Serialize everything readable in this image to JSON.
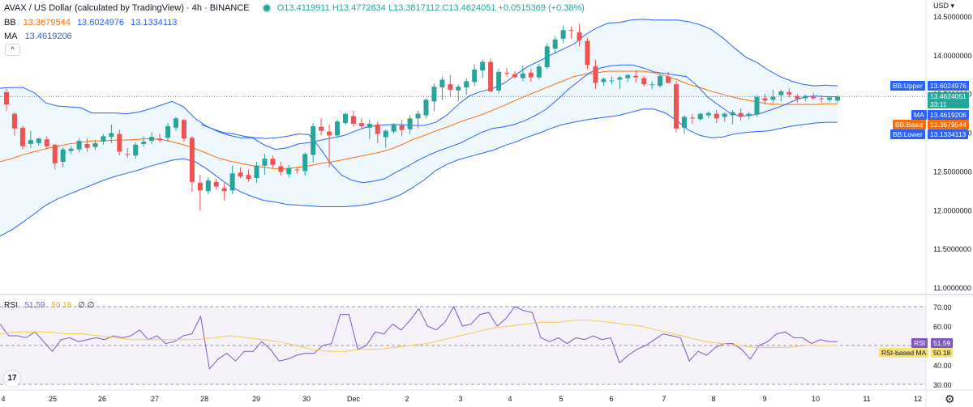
{
  "header": {
    "title": "AVAX / US Dollar (calculated by TradingView) · 4h · BINANCE",
    "ohlc": "O13.4119911 H13.4772634 L13.3817112 C13.4624051 +0.0515369 (+0.38%)",
    "bb_label": "BB",
    "bb_values": [
      "13.3679544",
      "13.6024976",
      "13.1334113"
    ],
    "ma_label": "MA",
    "ma_value": "13.4619206",
    "collapse_symbol": "^"
  },
  "price_axis": {
    "currency": "USD",
    "ticks": [
      "14.5000000",
      "14.0000000",
      "13.5000000",
      "13.0000000",
      "12.5000000",
      "12.0000000",
      "11.5000000",
      "11.0000000"
    ],
    "tags": {
      "bb_upper_label": "BB:Upper",
      "bb_upper_value": "13.6024976",
      "last_price": "13.4624051",
      "countdown": "33:11",
      "ma_label": "MA",
      "ma_value": "13.4619206",
      "bb_basis_label": "BB:Basis",
      "bb_basis_value": "13.3679544",
      "bb_lower_label": "BB:Lower",
      "bb_lower_value": "13.1334113"
    }
  },
  "rsi": {
    "legend_label": "RSI",
    "legend_value": "51.59",
    "legend_ma": "50.18",
    "legend_extra": "∅ ∅",
    "ticks": [
      "70.00",
      "60.00",
      "40.00",
      "30.00"
    ],
    "rsi_tag_label": "RSI",
    "rsi_tag_value": "51.59",
    "ma_tag_label": "RSI-based MA",
    "ma_tag_value": "50.18"
  },
  "time_axis": [
    "4",
    "25",
    "26",
    "27",
    "28",
    "29",
    "30",
    "Dec",
    "2",
    "3",
    "4",
    "5",
    "6",
    "7",
    "8",
    "9",
    "10",
    "11",
    "12"
  ],
  "colors": {
    "up": "#26a69a",
    "down": "#ef5350",
    "bb_band": "#2962ff",
    "bb_basis": "#ff6d00",
    "rsi_line": "#7e57c2",
    "rsi_ma": "#f7c948",
    "last_price": "#26a69a"
  },
  "chart_data": {
    "type": "candlestick",
    "title": "AVAX / US Dollar (calculated by TradingView) · 4h · BINANCE",
    "candles_ohlc": [
      [
        13.52,
        13.56,
        13.28,
        13.36
      ],
      [
        13.24,
        13.26,
        12.96,
        13.05
      ],
      [
        13.06,
        13.09,
        12.78,
        12.82
      ],
      [
        12.85,
        13.02,
        12.8,
        12.9
      ],
      [
        12.86,
        12.93,
        12.83,
        12.92
      ],
      [
        12.91,
        12.95,
        12.78,
        12.82
      ],
      [
        12.84,
        12.85,
        12.52,
        12.6
      ],
      [
        12.62,
        12.81,
        12.55,
        12.78
      ],
      [
        12.76,
        12.82,
        12.72,
        12.79
      ],
      [
        12.78,
        12.92,
        12.74,
        12.89
      ],
      [
        12.85,
        12.92,
        12.75,
        12.8
      ],
      [
        12.81,
        12.9,
        12.77,
        12.86
      ],
      [
        12.88,
        12.98,
        12.84,
        12.95
      ],
      [
        12.94,
        13.1,
        12.86,
        12.99
      ],
      [
        12.98,
        13.04,
        12.7,
        12.75
      ],
      [
        12.72,
        12.8,
        12.67,
        12.71
      ],
      [
        12.7,
        12.87,
        12.66,
        12.84
      ],
      [
        12.85,
        12.95,
        12.82,
        12.88
      ],
      [
        12.89,
        13.0,
        12.85,
        12.94
      ],
      [
        12.92,
        12.98,
        12.87,
        12.9
      ],
      [
        12.93,
        13.12,
        12.88,
        13.08
      ],
      [
        13.06,
        13.2,
        13.02,
        13.18
      ],
      [
        13.16,
        13.17,
        12.88,
        12.92
      ],
      [
        12.93,
        12.95,
        12.23,
        12.36
      ],
      [
        12.35,
        12.45,
        11.99,
        12.25
      ],
      [
        12.24,
        12.42,
        12.2,
        12.38
      ],
      [
        12.36,
        12.4,
        12.26,
        12.3
      ],
      [
        12.28,
        12.35,
        12.12,
        12.24
      ],
      [
        12.25,
        12.57,
        12.2,
        12.47
      ],
      [
        12.48,
        12.55,
        12.41,
        12.43
      ],
      [
        12.45,
        12.52,
        12.36,
        12.4
      ],
      [
        12.41,
        12.62,
        12.35,
        12.57
      ],
      [
        12.57,
        12.72,
        12.45,
        12.66
      ],
      [
        12.66,
        12.7,
        12.54,
        12.58
      ],
      [
        12.56,
        12.62,
        12.44,
        12.49
      ],
      [
        12.46,
        12.58,
        12.42,
        12.54
      ],
      [
        12.52,
        12.55,
        12.47,
        12.51
      ],
      [
        12.5,
        12.74,
        12.44,
        12.72
      ],
      [
        12.71,
        13.12,
        12.61,
        13.08
      ],
      [
        13.07,
        13.18,
        12.96,
        13.02
      ],
      [
        13.01,
        13.1,
        12.55,
        12.96
      ],
      [
        12.96,
        13.16,
        12.93,
        13.14
      ],
      [
        13.12,
        13.25,
        13.1,
        13.24
      ],
      [
        13.21,
        13.28,
        13.07,
        13.11
      ],
      [
        13.12,
        13.18,
        13.05,
        13.08
      ],
      [
        13.06,
        13.17,
        12.91,
        13.11
      ],
      [
        13.1,
        13.14,
        12.86,
        12.98
      ],
      [
        12.94,
        13.04,
        12.8,
        13.02
      ],
      [
        13.01,
        13.12,
        12.98,
        13.1
      ],
      [
        13.09,
        13.16,
        12.95,
        13.03
      ],
      [
        13.04,
        13.22,
        12.98,
        13.18
      ],
      [
        13.18,
        13.28,
        13.05,
        13.24
      ],
      [
        13.22,
        13.44,
        13.18,
        13.42
      ],
      [
        13.4,
        13.63,
        13.27,
        13.59
      ],
      [
        13.58,
        13.72,
        13.42,
        13.68
      ],
      [
        13.62,
        13.74,
        13.47,
        13.55
      ],
      [
        13.54,
        13.62,
        13.4,
        13.59
      ],
      [
        13.58,
        13.7,
        13.48,
        13.66
      ],
      [
        13.65,
        13.88,
        13.6,
        13.81
      ],
      [
        13.8,
        13.94,
        13.7,
        13.91
      ],
      [
        13.91,
        13.95,
        13.52,
        13.53
      ],
      [
        13.54,
        13.82,
        13.5,
        13.78
      ],
      [
        13.77,
        13.83,
        13.72,
        13.76
      ],
      [
        13.75,
        13.79,
        13.7,
        13.71
      ],
      [
        13.7,
        13.86,
        13.66,
        13.76
      ],
      [
        13.77,
        13.82,
        13.65,
        13.71
      ],
      [
        13.71,
        13.88,
        13.68,
        13.85
      ],
      [
        13.84,
        14.15,
        13.82,
        14.11
      ],
      [
        14.08,
        14.24,
        14.02,
        14.2
      ],
      [
        14.21,
        14.38,
        14.15,
        14.32
      ],
      [
        14.32,
        14.37,
        14.21,
        14.31
      ],
      [
        14.29,
        14.4,
        14.11,
        14.19
      ],
      [
        14.18,
        14.22,
        13.82,
        13.87
      ],
      [
        13.85,
        13.94,
        13.56,
        13.64
      ],
      [
        13.65,
        13.71,
        13.6,
        13.69
      ],
      [
        13.67,
        13.72,
        13.62,
        13.67
      ],
      [
        13.68,
        13.73,
        13.56,
        13.71
      ],
      [
        13.7,
        13.75,
        13.65,
        13.74
      ],
      [
        13.73,
        13.8,
        13.64,
        13.71
      ],
      [
        13.7,
        13.73,
        13.59,
        13.62
      ],
      [
        13.61,
        13.66,
        13.56,
        13.62
      ],
      [
        13.6,
        13.75,
        13.58,
        13.73
      ],
      [
        13.72,
        13.78,
        13.63,
        13.64
      ],
      [
        13.62,
        13.66,
        13.0,
        13.05
      ],
      [
        13.06,
        13.22,
        12.98,
        13.2
      ],
      [
        13.19,
        13.24,
        13.11,
        13.18
      ],
      [
        13.17,
        13.25,
        13.15,
        13.24
      ],
      [
        13.22,
        13.27,
        13.18,
        13.25
      ],
      [
        13.24,
        13.29,
        13.12,
        13.18
      ],
      [
        13.2,
        13.26,
        13.14,
        13.24
      ],
      [
        13.22,
        13.29,
        13.1,
        13.26
      ],
      [
        13.25,
        13.31,
        13.15,
        13.2
      ],
      [
        13.21,
        13.26,
        13.17,
        13.24
      ],
      [
        13.23,
        13.48,
        13.2,
        13.46
      ],
      [
        13.44,
        13.5,
        13.36,
        13.41
      ],
      [
        13.42,
        13.55,
        13.38,
        13.46
      ],
      [
        13.48,
        13.55,
        13.4,
        13.53
      ],
      [
        13.52,
        13.57,
        13.45,
        13.49
      ],
      [
        13.47,
        13.5,
        13.38,
        13.43
      ],
      [
        13.44,
        13.49,
        13.4,
        13.47
      ],
      [
        13.46,
        13.51,
        13.42,
        13.44
      ],
      [
        13.44,
        13.48,
        13.38,
        13.43
      ],
      [
        13.42,
        13.47,
        13.39,
        13.45
      ],
      [
        13.41,
        13.48,
        13.38,
        13.46
      ]
    ],
    "bb_upper": [
      13.57,
      13.58,
      13.58,
      13.51,
      13.38,
      13.34,
      13.33,
      13.32,
      13.25,
      13.25,
      13.25,
      13.24,
      13.26,
      13.3,
      13.35,
      13.4,
      13.33,
      13.18,
      13.08,
      13.01,
      12.96,
      12.93,
      12.93,
      12.84,
      12.78,
      12.8,
      12.85,
      12.87,
      12.9,
      12.93,
      12.96,
      13.02,
      13.07,
      13.09,
      13.1,
      13.1,
      13.09,
      13.09,
      13.13,
      13.23,
      13.37,
      13.48,
      13.53,
      13.57,
      13.64,
      13.75,
      13.85,
      13.92,
      14.0,
      14.07,
      14.14,
      14.26,
      14.35,
      14.41,
      14.42,
      14.45,
      14.46,
      14.45,
      14.45,
      14.45,
      14.43,
      14.39,
      14.33,
      14.22,
      14.09,
      13.97,
      13.9,
      13.8,
      13.72,
      13.66,
      13.62,
      13.6,
      13.61,
      13.6
    ],
    "bb_lower": [
      11.66,
      11.74,
      11.84,
      11.95,
      12.06,
      12.14,
      12.2,
      12.26,
      12.32,
      12.38,
      12.43,
      12.47,
      12.51,
      12.56,
      12.6,
      12.64,
      12.66,
      12.62,
      12.53,
      12.42,
      12.31,
      12.23,
      12.17,
      12.12,
      12.1,
      12.07,
      12.06,
      12.05,
      12.04,
      12.04,
      12.04,
      12.05,
      12.07,
      12.1,
      12.14,
      12.2,
      12.29,
      12.39,
      12.51,
      12.59,
      12.65,
      12.69,
      12.73,
      12.77,
      12.83,
      12.88,
      12.94,
      12.99,
      13.05,
      13.1,
      13.13,
      13.16,
      13.18,
      13.2,
      13.22,
      13.26,
      13.3,
      13.3,
      13.25,
      13.15,
      13.03,
      12.96,
      12.93,
      12.94,
      12.98,
      13.0,
      13.01,
      13.02,
      13.05,
      13.08,
      13.1,
      13.12,
      13.13,
      13.13
    ],
    "bb_basis": [
      12.62,
      12.66,
      12.71,
      12.75,
      12.79,
      12.82,
      12.85,
      12.87,
      12.89,
      12.89,
      12.9,
      12.9,
      12.91,
      12.92,
      12.91,
      12.88,
      12.84,
      12.79,
      12.73,
      12.67,
      12.63,
      12.6,
      12.57,
      12.55,
      12.53,
      12.53,
      12.55,
      12.57,
      12.6,
      12.62,
      12.65,
      12.68,
      12.71,
      12.74,
      12.78,
      12.84,
      12.91,
      12.96,
      13.02,
      13.07,
      13.13,
      13.18,
      13.23,
      13.29,
      13.35,
      13.42,
      13.48,
      13.54,
      13.6,
      13.66,
      13.72,
      13.75,
      13.77,
      13.79,
      13.79,
      13.79,
      13.79,
      13.77,
      13.73,
      13.68,
      13.62,
      13.58,
      13.53,
      13.49,
      13.45,
      13.42,
      13.39,
      13.37,
      13.36,
      13.36,
      13.36,
      13.36,
      13.37,
      13.37
    ],
    "ma_line": [
      13.1,
      13.05,
      13.0,
      12.98,
      12.95,
      12.93,
      12.92,
      12.93,
      12.95,
      12.98,
      12.97,
      12.8,
      12.6,
      12.45,
      12.38,
      12.35,
      12.37,
      12.4,
      12.48,
      12.55,
      12.63,
      12.7,
      12.76,
      12.81,
      12.86,
      12.93,
      13.0,
      13.05,
      13.07,
      13.1,
      13.15,
      13.22,
      13.3,
      13.42,
      13.55,
      13.66,
      13.77,
      13.83,
      13.86,
      13.87,
      13.87,
      13.83,
      13.78,
      13.76,
      13.74,
      13.72,
      13.6,
      13.45,
      13.35,
      13.25,
      13.21,
      13.22,
      13.25,
      13.3,
      13.35,
      13.41,
      13.46,
      13.47,
      13.46,
      13.46
    ],
    "rsi": [
      61,
      55,
      55,
      54,
      57,
      52,
      47,
      53,
      54,
      52,
      53,
      54,
      53,
      55,
      54,
      55,
      58,
      53,
      55,
      51,
      52,
      55,
      56,
      65,
      38,
      43,
      46,
      42,
      47,
      47,
      52,
      48,
      42,
      43,
      45,
      46,
      46,
      50,
      51,
      66,
      66,
      48,
      50,
      57,
      56,
      61,
      58,
      63,
      69,
      60,
      58,
      62,
      70,
      60,
      61,
      66,
      67,
      60,
      64,
      70,
      68,
      67,
      54,
      52,
      54,
      51,
      54,
      53,
      55,
      53,
      54,
      41,
      45,
      48,
      50,
      53,
      56,
      55,
      54,
      42,
      47,
      45,
      49,
      51,
      51,
      48,
      43,
      50,
      52,
      56,
      57,
      54,
      54,
      51,
      53,
      52,
      52
    ],
    "rsi_ma": [
      56,
      57,
      57,
      57,
      56,
      56,
      55,
      54,
      53,
      53,
      53,
      53,
      53,
      54,
      55,
      54,
      53,
      52,
      50,
      48,
      47,
      47,
      48,
      48,
      49,
      50,
      51,
      53,
      55,
      57,
      59,
      60,
      61,
      62,
      62,
      63,
      63,
      62,
      61,
      60,
      58,
      56,
      54,
      52,
      51,
      50,
      49,
      49,
      49,
      50,
      50,
      50
    ],
    "xlabels": [
      "4",
      "25",
      "26",
      "27",
      "28",
      "29",
      "30",
      "Dec",
      "2",
      "3",
      "4",
      "5",
      "6",
      "7",
      "8",
      "9",
      "10",
      "11",
      "12"
    ],
    "ylim_price": [
      11.0,
      14.5
    ],
    "ylim_rsi": [
      30,
      70
    ]
  }
}
